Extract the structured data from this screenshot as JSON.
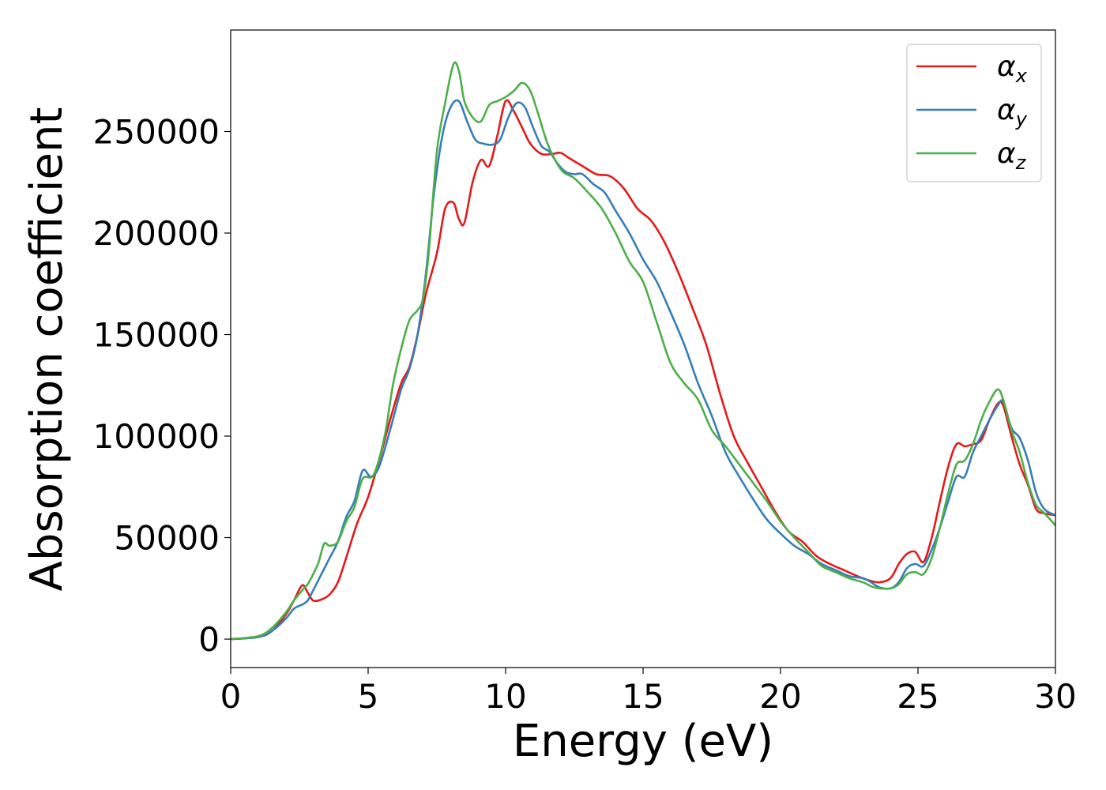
{
  "chart_data": {
    "type": "line",
    "xlabel": "Energy (eV)",
    "ylabel": "Absorption coefficient",
    "xlim": [
      0,
      30
    ],
    "ylim": [
      -14000,
      300000
    ],
    "xticks": [
      0,
      5,
      10,
      15,
      20,
      25,
      30
    ],
    "yticks": [
      0,
      50000,
      100000,
      150000,
      200000,
      250000
    ],
    "grid": false,
    "legend_position": "top-right",
    "series": [
      {
        "name": "α",
        "subscript": "x",
        "color": "#e41a1c",
        "x": [
          0,
          1,
          1.5,
          2,
          2.3,
          2.6,
          2.8,
          3,
          3.3,
          3.6,
          3.9,
          4.2,
          4.6,
          5,
          5.4,
          5.8,
          6.2,
          6.5,
          6.8,
          7.1,
          7.5,
          7.8,
          8.1,
          8.3,
          8.5,
          8.8,
          9.1,
          9.4,
          9.7,
          10,
          10.3,
          10.6,
          10.9,
          11.3,
          11.7,
          12,
          12.3,
          12.8,
          13.3,
          13.8,
          14.3,
          14.8,
          15.3,
          15.8,
          16.3,
          16.8,
          17.3,
          17.8,
          18.3,
          18.8,
          19.3,
          19.8,
          20.3,
          20.8,
          21.3,
          21.8,
          22.3,
          22.8,
          23.2,
          23.6,
          24,
          24.3,
          24.6,
          24.9,
          25.2,
          25.5,
          25.8,
          26.1,
          26.4,
          26.7,
          27,
          27.3,
          27.6,
          27.9,
          28.1,
          28.4,
          28.7,
          29,
          29.3,
          29.6,
          30
        ],
        "y": [
          0,
          1000,
          4000,
          12000,
          19000,
          26500,
          23000,
          19000,
          19500,
          22000,
          28000,
          40000,
          57000,
          70000,
          88000,
          108000,
          126000,
          134000,
          150000,
          170000,
          190000,
          212000,
          215000,
          207000,
          205000,
          225000,
          236000,
          233000,
          248000,
          265000,
          260000,
          252000,
          244000,
          239000,
          239000,
          239500,
          237000,
          233000,
          229000,
          228000,
          222000,
          212000,
          206000,
          195000,
          180000,
          163000,
          145000,
          121000,
          100000,
          87000,
          75000,
          63000,
          53000,
          48000,
          41000,
          37000,
          34000,
          31000,
          29000,
          28000,
          30000,
          37000,
          42000,
          43000,
          38000,
          50000,
          68000,
          85000,
          96000,
          95000,
          96000,
          98000,
          108000,
          116000,
          115000,
          100000,
          86000,
          76000,
          64000,
          62000,
          61000
        ]
      },
      {
        "name": "α",
        "subscript": "y",
        "color": "#377eb8",
        "x": [
          0,
          1,
          1.5,
          2,
          2.3,
          2.6,
          2.8,
          3,
          3.3,
          3.6,
          3.9,
          4.2,
          4.5,
          4.8,
          5.1,
          5.4,
          5.8,
          6.2,
          6.5,
          6.8,
          7.1,
          7.4,
          7.7,
          8,
          8.3,
          8.6,
          8.9,
          9.2,
          9.5,
          9.8,
          10.1,
          10.4,
          10.7,
          11,
          11.3,
          11.6,
          11.9,
          12.2,
          12.5,
          12.8,
          13.2,
          13.6,
          14,
          14.5,
          15,
          15.5,
          16,
          16.5,
          17,
          17.5,
          18,
          18.5,
          19,
          19.5,
          20,
          20.5,
          21,
          21.5,
          22,
          22.5,
          23,
          23.3,
          23.6,
          24,
          24.3,
          24.6,
          24.9,
          25.2,
          25.5,
          25.8,
          26.1,
          26.4,
          26.7,
          27,
          27.3,
          27.6,
          27.9,
          28.1,
          28.4,
          28.7,
          29,
          29.3,
          29.6,
          30
        ],
        "y": [
          0,
          1000,
          4000,
          10000,
          15000,
          17000,
          19000,
          24000,
          32000,
          40000,
          48000,
          60000,
          68000,
          83000,
          80000,
          85000,
          103000,
          123000,
          133000,
          150000,
          180000,
          220000,
          248000,
          262000,
          265000,
          255000,
          246000,
          244000,
          243500,
          246000,
          257000,
          264000,
          262000,
          252000,
          243000,
          240000,
          234000,
          230000,
          229000,
          229000,
          224000,
          220000,
          211000,
          200000,
          187000,
          176000,
          161000,
          145000,
          126000,
          110000,
          92000,
          80000,
          69000,
          59000,
          52000,
          46000,
          42000,
          37000,
          34000,
          31000,
          30000,
          28000,
          25500,
          25000,
          28000,
          35000,
          37000,
          36000,
          44000,
          55000,
          68000,
          80000,
          80000,
          92000,
          100000,
          108000,
          115000,
          117000,
          104000,
          99000,
          88000,
          72000,
          64000,
          61000
        ]
      },
      {
        "name": "α",
        "subscript": "z",
        "color": "#4daf4a",
        "x": [
          0,
          1,
          1.5,
          2,
          2.3,
          2.6,
          2.8,
          3,
          3.2,
          3.4,
          3.6,
          3.9,
          4.2,
          4.5,
          4.8,
          5.2,
          5.6,
          5.9,
          6.2,
          6.5,
          6.8,
          7,
          7.2,
          7.5,
          7.8,
          8.1,
          8.3,
          8.5,
          8.8,
          9.1,
          9.4,
          9.7,
          10,
          10.3,
          10.6,
          10.9,
          11.2,
          11.5,
          11.8,
          12.1,
          12.5,
          13,
          13.5,
          14,
          14.5,
          15,
          15.5,
          16,
          16.5,
          17,
          17.5,
          18,
          18.5,
          19,
          19.5,
          20,
          20.5,
          21,
          21.5,
          22,
          22.5,
          23,
          23.3,
          23.6,
          24,
          24.3,
          24.6,
          24.9,
          25.2,
          25.5,
          25.8,
          26.1,
          26.4,
          26.7,
          27,
          27.3,
          27.6,
          27.9,
          28.1,
          28.4,
          28.7,
          29,
          29.3,
          29.6,
          30
        ],
        "y": [
          0,
          1500,
          5500,
          13000,
          19000,
          24000,
          27000,
          32000,
          38000,
          47000,
          46000,
          48000,
          58000,
          65000,
          79000,
          81000,
          100000,
          125000,
          143000,
          157000,
          162000,
          168000,
          190000,
          240000,
          264000,
          283000,
          280000,
          265000,
          257000,
          255000,
          263000,
          265000,
          267000,
          270000,
          274000,
          270000,
          258000,
          245000,
          236000,
          230000,
          227000,
          220000,
          212000,
          200000,
          186000,
          176000,
          156000,
          136000,
          126000,
          118000,
          103000,
          95000,
          86000,
          77000,
          68000,
          58000,
          50000,
          43000,
          36000,
          33000,
          30000,
          28000,
          26000,
          25000,
          25000,
          27000,
          32000,
          33000,
          32000,
          40000,
          55000,
          72000,
          86000,
          88000,
          96000,
          108000,
          117000,
          123000,
          118000,
          103000,
          92000,
          77000,
          66000,
          62000,
          56000
        ]
      }
    ]
  }
}
